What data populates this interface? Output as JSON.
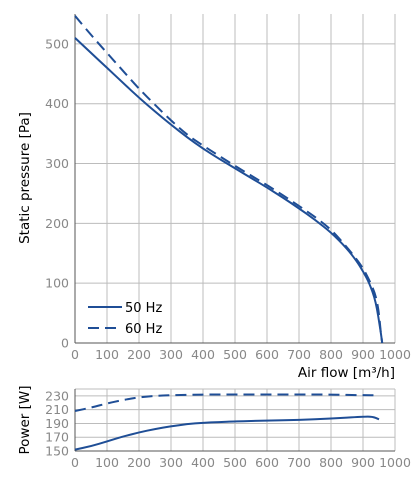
{
  "chart_data": [
    {
      "type": "line",
      "xlabel": "Air flow [m³/h]",
      "ylabel": "Static pressure [Pa]",
      "xlim": [
        0,
        1000
      ],
      "ylim": [
        0,
        550
      ],
      "xticks": [
        0,
        100,
        200,
        300,
        400,
        500,
        600,
        700,
        800,
        900,
        1000
      ],
      "yticks": [
        0,
        100,
        200,
        300,
        400,
        500
      ],
      "grid": true,
      "legend": "bottom-left",
      "color": "#1f4e96",
      "series": [
        {
          "name": "50 Hz",
          "dash": "solid",
          "x": [
            0,
            50,
            100,
            150,
            200,
            250,
            300,
            350,
            400,
            450,
            500,
            550,
            600,
            650,
            700,
            750,
            800,
            850,
            880,
            900,
            920,
            940,
            955,
            960
          ],
          "y": [
            510,
            485,
            460,
            435,
            410,
            387,
            365,
            344,
            325,
            308,
            292,
            276,
            260,
            243,
            225,
            206,
            185,
            158,
            137,
            120,
            100,
            70,
            20,
            0
          ]
        },
        {
          "name": "60 Hz",
          "dash": "dashed",
          "x": [
            0,
            50,
            100,
            150,
            200,
            250,
            300,
            350,
            400,
            450,
            500,
            550,
            600,
            650,
            700,
            750,
            800,
            850,
            880,
            900,
            920,
            940,
            950,
            955,
            960
          ],
          "y": [
            547,
            515,
            485,
            455,
            425,
            398,
            372,
            348,
            330,
            313,
            296,
            280,
            264,
            247,
            229,
            211,
            190,
            160,
            140,
            125,
            105,
            80,
            50,
            20,
            0
          ]
        }
      ]
    },
    {
      "type": "line",
      "xlabel": "",
      "ylabel": "Power [W]",
      "xlim": [
        0,
        1000
      ],
      "ylim": [
        150,
        240
      ],
      "xticks": [
        0,
        100,
        200,
        300,
        400,
        500,
        600,
        700,
        800,
        900,
        1000
      ],
      "yticks": [
        150,
        170,
        190,
        210,
        230
      ],
      "grid": true,
      "color": "#1f4e96",
      "series": [
        {
          "dash": "solid",
          "x": [
            0,
            50,
            100,
            150,
            200,
            250,
            300,
            350,
            400,
            450,
            500,
            600,
            700,
            800,
            900,
            930,
            950
          ],
          "y": [
            152,
            157,
            164,
            171,
            177,
            182,
            186,
            189,
            191,
            192,
            193,
            194,
            195,
            197,
            200,
            200,
            196
          ]
        },
        {
          "dash": "dashed",
          "x": [
            0,
            50,
            100,
            150,
            200,
            250,
            300,
            400,
            500,
            600,
            700,
            800,
            900,
            950
          ],
          "y": [
            208,
            213,
            219,
            224,
            228,
            230,
            231,
            232,
            232,
            232,
            232,
            232,
            231,
            231
          ]
        }
      ]
    }
  ]
}
